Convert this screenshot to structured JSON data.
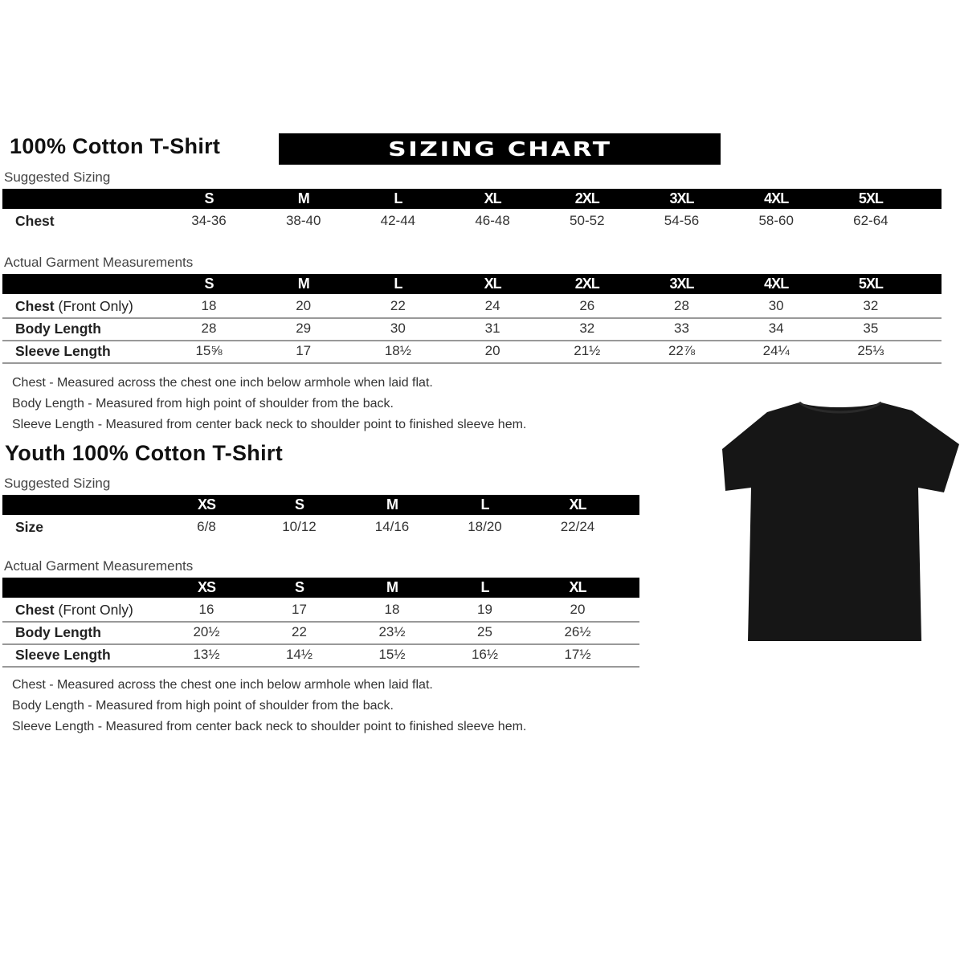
{
  "adult": {
    "title": "100% Cotton T-Shirt",
    "banner": "SIZING CHART",
    "suggested_label": "Suggested Sizing",
    "sizes": [
      "S",
      "M",
      "L",
      "XL",
      "2XL",
      "3XL",
      "4XL",
      "5XL"
    ],
    "suggested_rows": [
      {
        "label": "Chest",
        "values": [
          "34-36",
          "38-40",
          "42-44",
          "46-48",
          "50-52",
          "54-56",
          "58-60",
          "62-64"
        ]
      }
    ],
    "actual_label": "Actual Garment Measurements",
    "actual_rows": [
      {
        "label": "Chest",
        "label_extra": " (Front Only)",
        "values": [
          "18",
          "20",
          "22",
          "24",
          "26",
          "28",
          "30",
          "32"
        ]
      },
      {
        "label": "Body Length",
        "label_extra": "",
        "values": [
          "28",
          "29",
          "30",
          "31",
          "32",
          "33",
          "34",
          "35"
        ]
      },
      {
        "label": "Sleeve Length",
        "label_extra": "",
        "values": [
          "15⅝",
          "17",
          "18½",
          "20",
          "21½",
          "22⅞",
          "24¼",
          "25⅓"
        ]
      }
    ],
    "notes": [
      "Chest - Measured across the chest one inch below armhole when laid flat.",
      "Body Length - Measured from high point of shoulder from the back.",
      "Sleeve Length - Measured from center back neck to shoulder point to finished sleeve hem."
    ]
  },
  "youth": {
    "title": "Youth 100% Cotton T-Shirt",
    "suggested_label": "Suggested Sizing",
    "sizes": [
      "XS",
      "S",
      "M",
      "L",
      "XL"
    ],
    "suggested_rows": [
      {
        "label": "Size",
        "values": [
          "6/8",
          "10/12",
          "14/16",
          "18/20",
          "22/24"
        ]
      }
    ],
    "actual_label": "Actual Garment Measurements",
    "actual_rows": [
      {
        "label": "Chest",
        "label_extra": " (Front Only)",
        "values": [
          "16",
          "17",
          "18",
          "19",
          "20"
        ]
      },
      {
        "label": "Body Length",
        "label_extra": "",
        "values": [
          "20½",
          "22",
          "23½",
          "25",
          "26½"
        ]
      },
      {
        "label": "Sleeve Length",
        "label_extra": "",
        "values": [
          "13½",
          "14½",
          "15½",
          "16½",
          "17½"
        ]
      }
    ],
    "notes": [
      "Chest - Measured across the chest one inch below armhole when laid flat.",
      "Body Length - Measured from high point of shoulder from the back.",
      "Sleeve Length - Measured from center back neck to shoulder point to finished sleeve hem."
    ]
  },
  "image": {
    "icon": "black-t-shirt",
    "color": "#161616"
  }
}
